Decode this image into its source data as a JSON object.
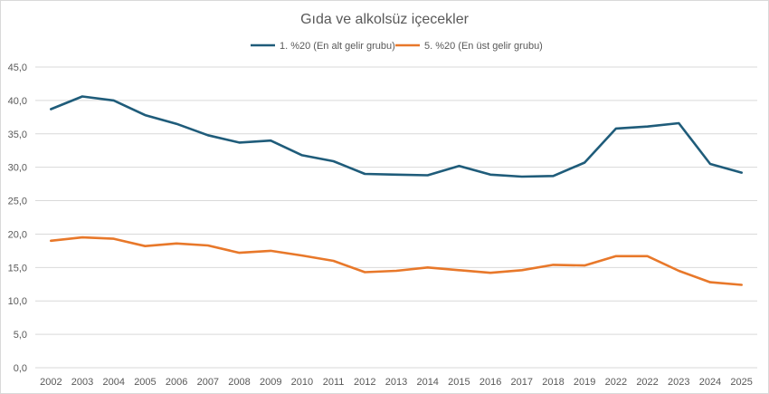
{
  "chart_data": {
    "type": "line",
    "title": "Gıda ve alkolsüz içecekler",
    "categories": [
      "2002",
      "2003",
      "2004",
      "2005",
      "2006",
      "2007",
      "2008",
      "2009",
      "2010",
      "2011",
      "2012",
      "2013",
      "2014",
      "2015",
      "2016",
      "2017",
      "2018",
      "2019",
      "2022",
      "2022",
      "2023",
      "2024",
      "2025"
    ],
    "y_tick_labels": [
      "0,0",
      "5,0",
      "10,0",
      "15,0",
      "20,0",
      "25,0",
      "30,0",
      "35,0",
      "40,0",
      "45,0"
    ],
    "ylim": [
      0,
      45
    ],
    "y_step": 5,
    "grid": true,
    "legend_position": "top",
    "series": [
      {
        "name": "1. %20 (En alt gelir grubu)",
        "color": "#1f5c7a",
        "values": [
          38.7,
          40.6,
          40.0,
          37.8,
          36.5,
          34.8,
          33.7,
          34.0,
          31.8,
          30.9,
          29.0,
          28.9,
          28.8,
          30.2,
          28.9,
          28.6,
          28.7,
          30.7,
          35.8,
          36.1,
          36.6,
          30.5,
          29.2
        ]
      },
      {
        "name": "5. %20 (En üst gelir grubu)",
        "color": "#e8782a",
        "values": [
          19.0,
          19.5,
          19.3,
          18.2,
          18.6,
          18.3,
          17.2,
          17.5,
          16.8,
          16.0,
          14.3,
          14.5,
          15.0,
          14.6,
          14.2,
          14.6,
          15.4,
          15.3,
          16.7,
          16.7,
          14.5,
          12.8,
          12.4
        ]
      }
    ],
    "gridline_color": "#d9d9d9"
  }
}
